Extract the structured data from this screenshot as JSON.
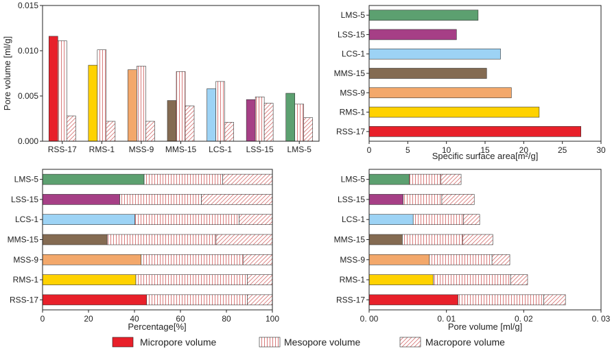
{
  "colors": {
    "RSS-17": "#e8202a",
    "RMS-1": "#ffd200",
    "MSS-9": "#f3a86b",
    "MMS-15": "#846b52",
    "LCS-1": "#9dd3f5",
    "LSS-15": "#a63f86",
    "LMS-5": "#5ca070"
  },
  "legend": {
    "micro": "Micropore volume",
    "meso": "Mesopore volume",
    "macro": "Macropore volume"
  },
  "chart_data": [
    {
      "type": "bar",
      "title": "",
      "xlabel": "",
      "ylabel": "Pore volume [ml/g]",
      "ylim": [
        0,
        0.015
      ],
      "yticks": [
        "0.000",
        "0.005",
        "0.010",
        "0.015"
      ],
      "categories": [
        "RSS-17",
        "RMS-1",
        "MSS-9",
        "MMS-15",
        "LCS-1",
        "LSS-15",
        "LMS-5"
      ],
      "series": [
        {
          "name": "Micropore volume",
          "values": [
            0.0116,
            0.0084,
            0.0079,
            0.0045,
            0.0058,
            0.0046,
            0.0053
          ]
        },
        {
          "name": "Mesopore volume",
          "values": [
            0.0111,
            0.0101,
            0.0083,
            0.0077,
            0.0066,
            0.0049,
            0.0041
          ]
        },
        {
          "name": "Macropore volume",
          "values": [
            0.0028,
            0.0022,
            0.0022,
            0.0039,
            0.0021,
            0.0042,
            0.0026
          ]
        }
      ]
    },
    {
      "type": "bar",
      "orientation": "horizontal",
      "xlabel": "Specific surface area[m²/g]",
      "xlim": [
        0,
        30
      ],
      "xticks": [
        "0",
        "5",
        "10",
        "15",
        "20",
        "25",
        "30"
      ],
      "categories": [
        "RSS-17",
        "RMS-1",
        "MSS-9",
        "MMS-15",
        "LCS-1",
        "LSS-15",
        "LMS-5"
      ],
      "values": [
        27.4,
        22.0,
        18.4,
        15.2,
        17.0,
        11.3,
        14.1
      ]
    },
    {
      "type": "bar",
      "orientation": "horizontal",
      "stacked": true,
      "xlabel": "Percentage[%]",
      "xlim": [
        0,
        100
      ],
      "xticks": [
        "0",
        "20",
        "40",
        "60",
        "80",
        "100"
      ],
      "categories": [
        "RSS-17",
        "RMS-1",
        "MSS-9",
        "MMS-15",
        "LCS-1",
        "LSS-15",
        "LMS-5"
      ],
      "series": [
        {
          "name": "Micropore volume",
          "values": [
            45.3,
            40.6,
            42.9,
            28.1,
            40.2,
            33.6,
            44.2
          ]
        },
        {
          "name": "Mesopore volume",
          "values": [
            43.8,
            48.5,
            44.5,
            47.4,
            45.3,
            35.5,
            34.2
          ]
        },
        {
          "name": "Macropore volume",
          "values": [
            10.9,
            10.9,
            12.6,
            24.5,
            14.5,
            30.9,
            21.6
          ]
        }
      ]
    },
    {
      "type": "bar",
      "orientation": "horizontal",
      "stacked": true,
      "xlabel": "Pore volume [ml/g]",
      "xlim": [
        0,
        0.03
      ],
      "xticks": [
        "0. 00",
        "0. 01",
        "0. 02",
        "0. 03"
      ],
      "categories": [
        "RSS-17",
        "RMS-1",
        "MSS-9",
        "MMS-15",
        "LCS-1",
        "LSS-15",
        "LMS-5"
      ],
      "series": [
        {
          "name": "Micropore volume",
          "values": [
            0.0115,
            0.0083,
            0.0078,
            0.0043,
            0.0057,
            0.0044,
            0.0052
          ]
        },
        {
          "name": "Mesopore volume",
          "values": [
            0.0111,
            0.01,
            0.0081,
            0.0078,
            0.0065,
            0.005,
            0.0041
          ]
        },
        {
          "name": "Macropore volume",
          "values": [
            0.0028,
            0.0022,
            0.0023,
            0.0039,
            0.0021,
            0.0042,
            0.0026
          ]
        }
      ]
    }
  ]
}
